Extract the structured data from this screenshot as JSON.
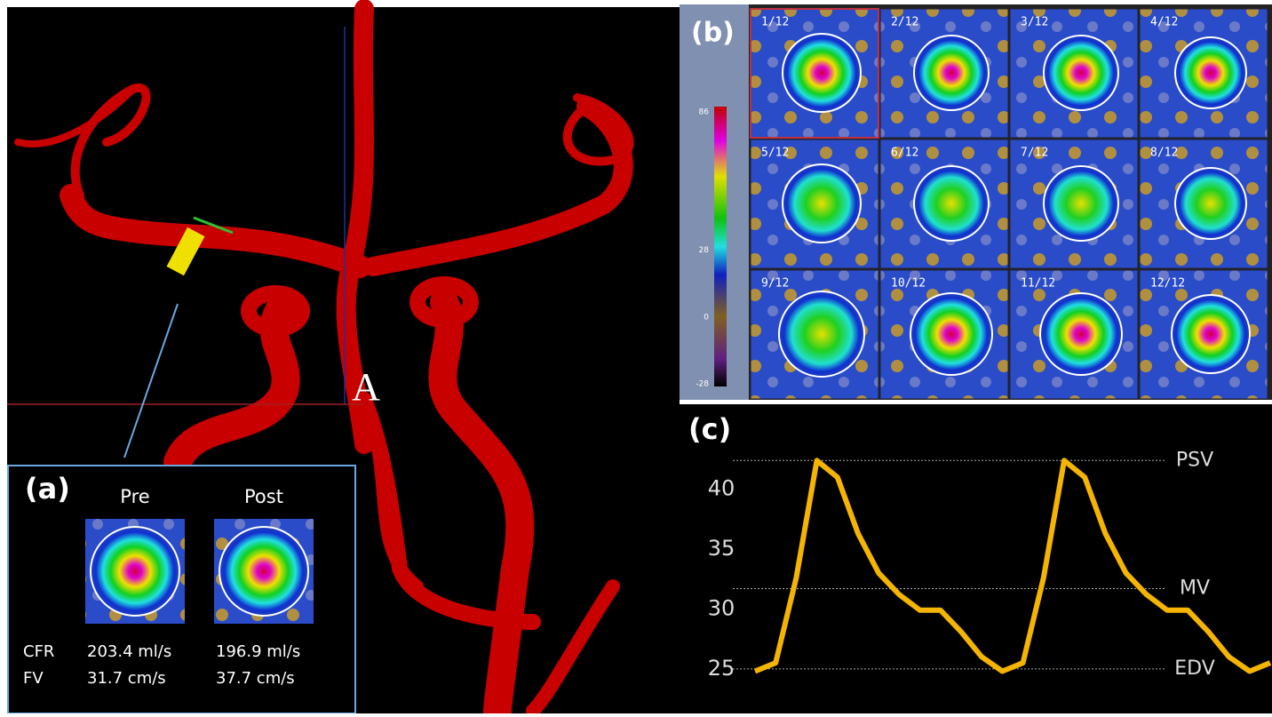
{
  "main_image": {
    "label": "A"
  },
  "panel_a": {
    "label": "(a)",
    "columns": [
      "Pre",
      "Post"
    ],
    "rows": [
      [
        "CFR",
        "203.4 ml/s",
        "196.9 ml/s"
      ],
      [
        "FV",
        "31.7 cm/s",
        "37.7 cm/s"
      ]
    ]
  },
  "panel_b": {
    "label": "(b)",
    "colorbar_ticks": [
      86,
      28,
      0,
      -28
    ],
    "frames": [
      "1/12",
      "2/12",
      "3/12",
      "4/12",
      "5/12",
      "6/12",
      "7/12",
      "8/12",
      "9/12",
      "10/12",
      "11/12",
      "12/12"
    ]
  },
  "chart_data": {
    "type": "line",
    "title": "(c)",
    "categories": [
      null,
      null,
      null,
      null,
      null,
      null,
      null,
      null,
      null,
      null,
      null,
      null,
      null,
      null,
      null,
      null,
      null,
      null,
      null,
      null,
      null,
      null,
      null,
      null,
      null,
      null
    ],
    "values": [
      24.8,
      25.5,
      32.6,
      42.4,
      41,
      36.3,
      33,
      31.2,
      29.9,
      29.9,
      28.1,
      26,
      24.8,
      25.5,
      32.6,
      42.4,
      41,
      36.3,
      33,
      31.2,
      29.9,
      29.9,
      28.1,
      26,
      24.8,
      25.5
    ],
    "color": "#f5b400",
    "ylim": [
      21.5,
      44.5
    ],
    "yticks": [
      25,
      30,
      35,
      40
    ],
    "reference_lines": [
      {
        "label": "PSV",
        "value": 42.4
      },
      {
        "label": "MV",
        "value": 31.7
      },
      {
        "label": "EDV",
        "value": 25
      }
    ]
  }
}
